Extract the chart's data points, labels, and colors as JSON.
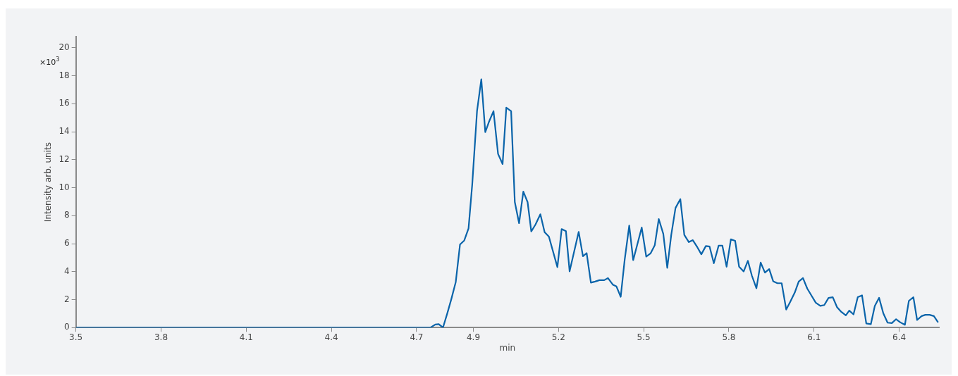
{
  "chart_data": {
    "type": "line",
    "xlabel": "min",
    "ylabel": "Intensity arb. units",
    "annotations": [
      "×10$^{3}$"
    ],
    "xlim": [
      3.5,
      6.54
    ],
    "ylim": [
      0,
      20.8
    ],
    "xticks": [
      3.5,
      3.8,
      4.1,
      4.4,
      4.7,
      4.9,
      5.2,
      5.5,
      5.8,
      6.1,
      6.4
    ],
    "yticks": [
      0,
      2,
      4,
      6,
      8,
      10,
      12,
      14,
      16,
      18,
      20
    ],
    "grid": false,
    "legend": false,
    "marker": "none",
    "line_style": "solid",
    "series": [
      {
        "color": "#0a64aa",
        "x": [
          3.5,
          4.749,
          4.766,
          4.778,
          4.793,
          4.809,
          4.823,
          4.838,
          4.853,
          4.868,
          4.883,
          4.896,
          4.913,
          4.928,
          4.942,
          4.956,
          4.971,
          4.987,
          5.003,
          5.016,
          5.033,
          5.046,
          5.061,
          5.076,
          5.091,
          5.104,
          5.119,
          5.136,
          5.151,
          5.166,
          5.196,
          5.211,
          5.226,
          5.239,
          5.271,
          5.286,
          5.299,
          5.314,
          5.329,
          5.344,
          5.361,
          5.374,
          5.391,
          5.404,
          5.419,
          5.433,
          5.449,
          5.463,
          5.493,
          5.509,
          5.524,
          5.539,
          5.553,
          5.569,
          5.583,
          5.597,
          5.612,
          5.629,
          5.643,
          5.659,
          5.673,
          5.689,
          5.703,
          5.719,
          5.732,
          5.747,
          5.764,
          5.777,
          5.792,
          5.807,
          5.822,
          5.836,
          5.852,
          5.867,
          5.881,
          5.897,
          5.912,
          5.927,
          5.942,
          5.956,
          5.971,
          5.986,
          6.002,
          6.016,
          6.032,
          6.046,
          6.061,
          6.076,
          6.092,
          6.106,
          6.122,
          6.136,
          6.151,
          6.166,
          6.181,
          6.196,
          6.212,
          6.224,
          6.239,
          6.254,
          6.269,
          6.284,
          6.3,
          6.314,
          6.329,
          6.344,
          6.359,
          6.374,
          6.389,
          6.404,
          6.42,
          6.434,
          6.45,
          6.463,
          6.479,
          6.492,
          6.507,
          6.522,
          6.537
        ],
        "values": [
          0,
          0,
          0.22,
          0.24,
          0,
          1.07,
          2.08,
          3.26,
          5.94,
          6.23,
          7.09,
          10.23,
          15.5,
          17.75,
          13.97,
          14.76,
          15.47,
          12.41,
          11.69,
          15.72,
          15.47,
          8.97,
          7.46,
          9.72,
          8.97,
          6.87,
          7.37,
          8.1,
          6.82,
          6.5,
          4.32,
          7.04,
          6.9,
          4.02,
          6.84,
          5.1,
          5.32,
          3.21,
          3.29,
          3.39,
          3.39,
          3.54,
          3.07,
          2.94,
          2.2,
          4.85,
          7.29,
          4.82,
          7.15,
          5.07,
          5.3,
          5.89,
          7.76,
          6.7,
          4.27,
          6.62,
          8.55,
          9.18,
          6.62,
          6.11,
          6.25,
          5.74,
          5.24,
          5.83,
          5.79,
          4.6,
          5.86,
          5.86,
          4.35,
          6.31,
          6.2,
          4.35,
          4.01,
          4.77,
          3.71,
          2.81,
          4.65,
          3.93,
          4.18,
          3.31,
          3.17,
          3.17,
          1.29,
          1.83,
          2.5,
          3.29,
          3.54,
          2.79,
          2.25,
          1.78,
          1.55,
          1.61,
          2.12,
          2.17,
          1.46,
          1.12,
          0.87,
          1.21,
          0.94,
          2.17,
          2.3,
          0.29,
          0.24,
          1.55,
          2.13,
          1.02,
          0.35,
          0.32,
          0.6,
          0.37,
          0.2,
          1.91,
          2.17,
          0.54,
          0.82,
          0.91,
          0.91,
          0.82,
          0.37
        ]
      }
    ]
  }
}
